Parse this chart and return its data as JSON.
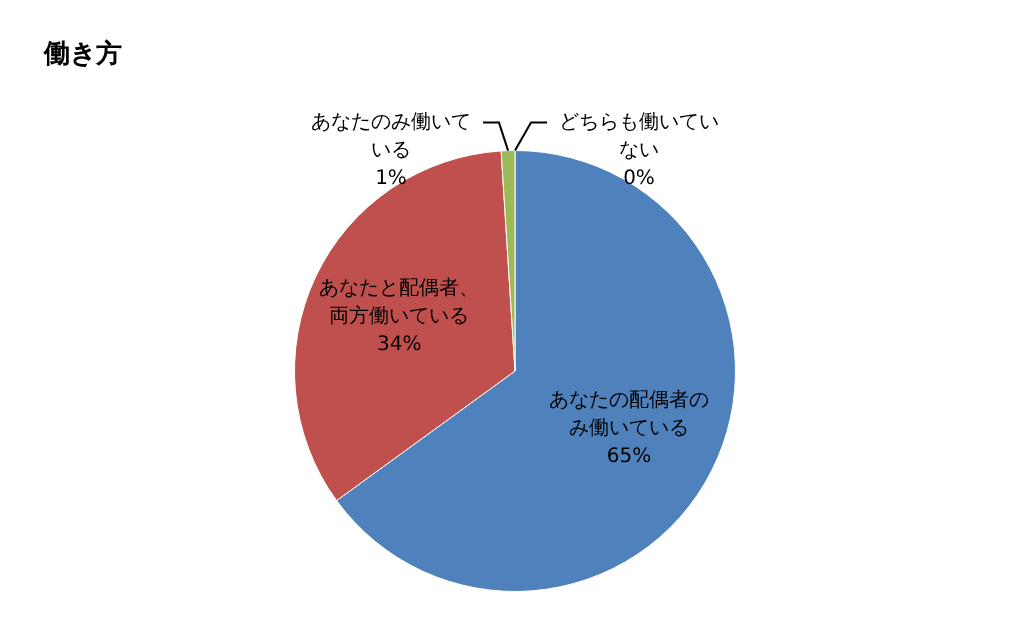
{
  "chart_data": {
    "type": "pie",
    "title": "働き方",
    "categories": [
      "あなたの配偶者のみ働いている",
      "あなたと配偶者、両方働いている",
      "あなたのみ働いている",
      "どちらも働いていない"
    ],
    "values": [
      65,
      34,
      1,
      0
    ],
    "colors": [
      "#4f81bd",
      "#c0504d",
      "#9bbb59",
      "#8064a2"
    ],
    "value_labels": [
      "65%",
      "34%",
      "1%",
      "0%"
    ]
  }
}
